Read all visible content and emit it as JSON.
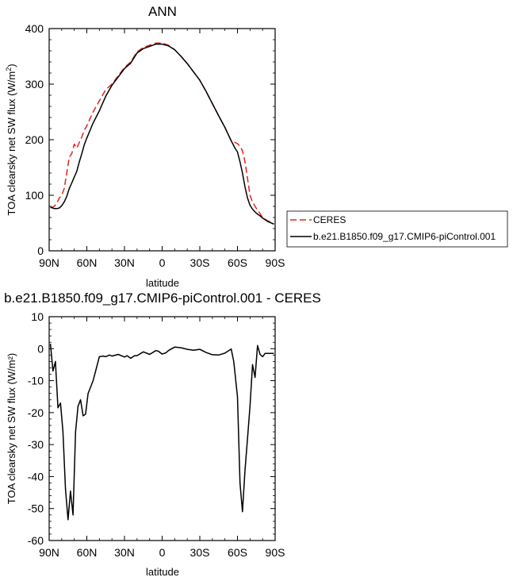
{
  "chart_data": [
    {
      "type": "line",
      "title": "ANN",
      "xlabel": "latitude",
      "ylabel": "TOA clearsky net SW flux (W/m²)",
      "ylabel_main": "TOA clearsky net SW flux (W/m",
      "ylabel_sup": "2",
      "ylabel_end": ")",
      "xlim": [
        90,
        -90
      ],
      "ylim": [
        0,
        400
      ],
      "x_ticks": [
        90,
        60,
        30,
        0,
        -30,
        -60,
        -90
      ],
      "x_tick_labels": [
        "90N",
        "60N",
        "30N",
        "0",
        "30S",
        "60S",
        "90S"
      ],
      "y_ticks": [
        0,
        100,
        200,
        300,
        400
      ],
      "y_tick_labels": [
        "0",
        "100",
        "200",
        "300",
        "400"
      ],
      "legend": [
        "CERES",
        "b.e21.B1850.f09_g17.CMIP6-piControl.001"
      ],
      "series": [
        {
          "name": "CERES",
          "color": "#e8221b",
          "dash": "dashed",
          "x": [
            89,
            86,
            84,
            82,
            80,
            78,
            76,
            74,
            72,
            70,
            68,
            66,
            64,
            62,
            60,
            55,
            50,
            45,
            40,
            35,
            30,
            25,
            20,
            15,
            10,
            5,
            0,
            -5,
            -10,
            -15,
            -20,
            -25,
            -30,
            -35,
            -40,
            -45,
            -50,
            -55,
            -58,
            -60,
            -62,
            -64,
            -66,
            -68,
            -70,
            -72,
            -74,
            -76,
            -78,
            -80,
            -82,
            -84,
            -86,
            -88,
            -89
          ],
          "values": [
            77,
            80,
            85,
            95,
            100,
            112,
            140,
            168,
            175,
            192,
            185,
            195,
            205,
            217,
            225,
            250,
            270,
            290,
            300,
            315,
            330,
            340,
            358,
            366,
            370,
            374,
            374,
            370,
            362,
            350,
            337,
            322,
            307,
            287,
            265,
            243,
            222,
            198,
            195,
            193,
            188,
            180,
            160,
            130,
            100,
            88,
            80,
            73,
            67,
            60,
            57,
            54,
            52,
            50,
            49
          ]
        },
        {
          "name": "b.e21.B1850.f09_g17.CMIP6-piControl.001",
          "color": "#000000",
          "dash": "solid",
          "x": [
            89,
            86,
            84,
            82,
            80,
            78,
            76,
            74,
            72,
            70,
            68,
            66,
            64,
            62,
            60,
            55,
            50,
            45,
            40,
            35,
            30,
            25,
            20,
            15,
            10,
            5,
            0,
            -5,
            -10,
            -15,
            -20,
            -25,
            -30,
            -35,
            -40,
            -45,
            -50,
            -55,
            -58,
            -60,
            -62,
            -64,
            -66,
            -68,
            -70,
            -72,
            -74,
            -76,
            -78,
            -80,
            -82,
            -84,
            -86,
            -88,
            -89
          ],
          "values": [
            79,
            76,
            76,
            77,
            81,
            88,
            98,
            112,
            122,
            133,
            143,
            160,
            175,
            191,
            203,
            230,
            252,
            278,
            298,
            313,
            328,
            338,
            356,
            364,
            368,
            372,
            372,
            369,
            362,
            350,
            337,
            322,
            307,
            287,
            265,
            243,
            222,
            198,
            185,
            178,
            160,
            140,
            115,
            95,
            82,
            75,
            70,
            66,
            63,
            59,
            56,
            53,
            51,
            49,
            48
          ]
        }
      ]
    },
    {
      "type": "line",
      "title": "b.e21.B1850.f09_g17.CMIP6-piControl.001 - CERES",
      "xlabel": "latitude",
      "ylabel": "TOA clearsky net SW flux (W/m²)",
      "xlim": [
        90,
        -90
      ],
      "ylim": [
        -60,
        10
      ],
      "x_ticks": [
        90,
        60,
        30,
        0,
        -30,
        -60,
        -90
      ],
      "x_tick_labels": [
        "90N",
        "60N",
        "30N",
        "0",
        "30S",
        "60S",
        "90S"
      ],
      "y_ticks": [
        -60,
        -50,
        -40,
        -30,
        -20,
        -10,
        0,
        10
      ],
      "y_tick_labels": [
        "-60",
        "-50",
        "-40",
        "-30",
        "-20",
        "-10",
        "0",
        "10"
      ],
      "series": [
        {
          "name": "b.e21.B1850.f09_g17.CMIP6-piControl.001 - CERES",
          "color": "#000000",
          "dash": "solid",
          "x": [
            89,
            87,
            85,
            83,
            81,
            79,
            77,
            75,
            73,
            71,
            69,
            67,
            65,
            63,
            61,
            59,
            57,
            55,
            53,
            50,
            47,
            45,
            42,
            40,
            35,
            30,
            28,
            25,
            22,
            20,
            15,
            10,
            5,
            3,
            0,
            -3,
            -5,
            -10,
            -15,
            -20,
            -25,
            -30,
            -35,
            -40,
            -45,
            -50,
            -55,
            -57,
            -60,
            -62,
            -64,
            -66,
            -68,
            -70,
            -72,
            -74,
            -76,
            -78,
            -80,
            -82,
            -84,
            -86,
            -88,
            -89
          ],
          "values": [
            1.5,
            -7,
            -4,
            -18.5,
            -17,
            -26,
            -44,
            -53.5,
            -44.5,
            -52,
            -26,
            -18,
            -16,
            -21,
            -20.5,
            -14,
            -12,
            -10,
            -7,
            -2.5,
            -2.3,
            -2.5,
            -2,
            -2.3,
            -1.8,
            -2.6,
            -2.2,
            -3,
            -2.2,
            -2.2,
            -1,
            -1.8,
            -0.6,
            -0.8,
            -1.7,
            -1.3,
            -0.6,
            0.5,
            0.3,
            -0.2,
            -0.5,
            -0.2,
            -1.2,
            -1.9,
            -2,
            -1.4,
            -0.1,
            -4,
            -15,
            -42,
            -51,
            -38,
            -28,
            -18,
            -5,
            -9,
            1,
            -1.8,
            -2.5,
            -1.5,
            -1.5,
            -1.5,
            -1.5,
            -1.5
          ]
        }
      ]
    }
  ]
}
